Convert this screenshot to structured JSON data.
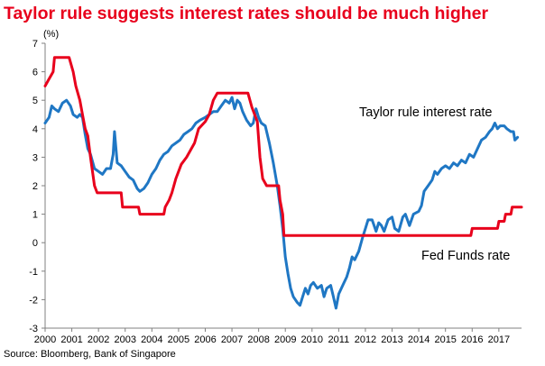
{
  "title": "Taylor rule suggests interest rates should be much higher",
  "source": "Source: Bloomberg, Bank of Singapore",
  "colors": {
    "title": "#e8001c",
    "taylor_line": "#1f77c4",
    "fed_line": "#e8001c",
    "axis": "#808080"
  },
  "chart_data": {
    "type": "line",
    "title": "Taylor rule suggests interest rates should be much higher",
    "ylabel": "(%)",
    "xlabel": "",
    "ylim": [
      -3,
      7
    ],
    "xlim": [
      2000,
      2017.85
    ],
    "yticks": [
      "-3",
      "-2",
      "-1",
      "0",
      "1",
      "2",
      "3",
      "4",
      "5",
      "6",
      "7"
    ],
    "xticks": [
      "2000",
      "2001",
      "2002",
      "2003",
      "2004",
      "2005",
      "2006",
      "2007",
      "2008",
      "2009",
      "2010",
      "2011",
      "2012",
      "2013",
      "2014",
      "2015",
      "2016",
      "2017"
    ],
    "grid": false,
    "legend": "inline labels",
    "series": [
      {
        "name": "Taylor rule interest rate",
        "color": "#1f77c4",
        "points": [
          [
            2000.0,
            4.2
          ],
          [
            2000.15,
            4.4
          ],
          [
            2000.25,
            4.8
          ],
          [
            2000.35,
            4.7
          ],
          [
            2000.5,
            4.6
          ],
          [
            2000.65,
            4.9
          ],
          [
            2000.8,
            5.0
          ],
          [
            2000.95,
            4.8
          ],
          [
            2001.05,
            4.5
          ],
          [
            2001.2,
            4.4
          ],
          [
            2001.3,
            4.5
          ],
          [
            2001.4,
            4.4
          ],
          [
            2001.5,
            3.8
          ],
          [
            2001.6,
            3.3
          ],
          [
            2001.7,
            3.1
          ],
          [
            2001.85,
            2.6
          ],
          [
            2002.0,
            2.5
          ],
          [
            2002.15,
            2.4
          ],
          [
            2002.3,
            2.6
          ],
          [
            2002.45,
            2.6
          ],
          [
            2002.55,
            3.1
          ],
          [
            2002.6,
            3.9
          ],
          [
            2002.7,
            2.8
          ],
          [
            2002.85,
            2.7
          ],
          [
            2003.0,
            2.5
          ],
          [
            2003.15,
            2.3
          ],
          [
            2003.3,
            2.2
          ],
          [
            2003.45,
            1.9
          ],
          [
            2003.55,
            1.8
          ],
          [
            2003.7,
            1.9
          ],
          [
            2003.85,
            2.1
          ],
          [
            2004.0,
            2.4
          ],
          [
            2004.15,
            2.6
          ],
          [
            2004.3,
            2.9
          ],
          [
            2004.45,
            3.1
          ],
          [
            2004.6,
            3.2
          ],
          [
            2004.75,
            3.4
          ],
          [
            2004.9,
            3.5
          ],
          [
            2005.05,
            3.6
          ],
          [
            2005.2,
            3.8
          ],
          [
            2005.35,
            3.9
          ],
          [
            2005.5,
            4.0
          ],
          [
            2005.65,
            4.2
          ],
          [
            2005.8,
            4.3
          ],
          [
            2006.0,
            4.4
          ],
          [
            2006.15,
            4.5
          ],
          [
            2006.3,
            4.6
          ],
          [
            2006.45,
            4.6
          ],
          [
            2006.6,
            4.8
          ],
          [
            2006.75,
            5.0
          ],
          [
            2006.9,
            4.9
          ],
          [
            2007.0,
            5.1
          ],
          [
            2007.1,
            4.7
          ],
          [
            2007.2,
            5.0
          ],
          [
            2007.3,
            4.9
          ],
          [
            2007.4,
            4.6
          ],
          [
            2007.55,
            4.3
          ],
          [
            2007.7,
            4.1
          ],
          [
            2007.8,
            4.2
          ],
          [
            2007.9,
            4.7
          ],
          [
            2008.0,
            4.4
          ],
          [
            2008.1,
            4.2
          ],
          [
            2008.25,
            4.1
          ],
          [
            2008.4,
            3.5
          ],
          [
            2008.55,
            2.8
          ],
          [
            2008.7,
            2.0
          ],
          [
            2008.8,
            1.3
          ],
          [
            2008.9,
            0.5
          ],
          [
            2009.0,
            -0.5
          ],
          [
            2009.1,
            -1.1
          ],
          [
            2009.2,
            -1.6
          ],
          [
            2009.3,
            -1.9
          ],
          [
            2009.45,
            -2.1
          ],
          [
            2009.55,
            -2.2
          ],
          [
            2009.65,
            -1.9
          ],
          [
            2009.75,
            -1.6
          ],
          [
            2009.85,
            -1.8
          ],
          [
            2009.95,
            -1.5
          ],
          [
            2010.05,
            -1.4
          ],
          [
            2010.2,
            -1.6
          ],
          [
            2010.35,
            -1.5
          ],
          [
            2010.45,
            -1.9
          ],
          [
            2010.55,
            -1.6
          ],
          [
            2010.7,
            -1.5
          ],
          [
            2010.8,
            -1.9
          ],
          [
            2010.9,
            -2.3
          ],
          [
            2011.0,
            -1.8
          ],
          [
            2011.15,
            -1.5
          ],
          [
            2011.3,
            -1.2
          ],
          [
            2011.4,
            -0.9
          ],
          [
            2011.5,
            -0.5
          ],
          [
            2011.6,
            -0.6
          ],
          [
            2011.75,
            -0.3
          ],
          [
            2011.9,
            0.2
          ],
          [
            2012.0,
            0.5
          ],
          [
            2012.1,
            0.8
          ],
          [
            2012.25,
            0.8
          ],
          [
            2012.4,
            0.4
          ],
          [
            2012.5,
            0.7
          ],
          [
            2012.6,
            0.6
          ],
          [
            2012.7,
            0.4
          ],
          [
            2012.85,
            0.8
          ],
          [
            2013.0,
            0.9
          ],
          [
            2013.1,
            0.5
          ],
          [
            2013.25,
            0.4
          ],
          [
            2013.4,
            0.9
          ],
          [
            2013.5,
            1.0
          ],
          [
            2013.65,
            0.6
          ],
          [
            2013.8,
            1.0
          ],
          [
            2014.0,
            1.1
          ],
          [
            2014.1,
            1.3
          ],
          [
            2014.2,
            1.8
          ],
          [
            2014.35,
            2.0
          ],
          [
            2014.5,
            2.2
          ],
          [
            2014.6,
            2.5
          ],
          [
            2014.7,
            2.4
          ],
          [
            2014.85,
            2.6
          ],
          [
            2015.0,
            2.7
          ],
          [
            2015.15,
            2.6
          ],
          [
            2015.3,
            2.8
          ],
          [
            2015.45,
            2.7
          ],
          [
            2015.6,
            2.9
          ],
          [
            2015.75,
            2.8
          ],
          [
            2015.9,
            3.1
          ],
          [
            2016.05,
            3.0
          ],
          [
            2016.2,
            3.3
          ],
          [
            2016.35,
            3.6
          ],
          [
            2016.5,
            3.7
          ],
          [
            2016.65,
            3.9
          ],
          [
            2016.75,
            4.0
          ],
          [
            2016.85,
            4.2
          ],
          [
            2016.95,
            4.0
          ],
          [
            2017.05,
            4.1
          ],
          [
            2017.2,
            4.1
          ],
          [
            2017.3,
            4.0
          ],
          [
            2017.45,
            3.9
          ],
          [
            2017.55,
            3.9
          ],
          [
            2017.6,
            3.6
          ],
          [
            2017.7,
            3.7
          ]
        ]
      },
      {
        "name": "Fed Funds rate",
        "color": "#e8001c",
        "points": [
          [
            2000.0,
            5.5
          ],
          [
            2000.15,
            5.75
          ],
          [
            2000.3,
            6.0
          ],
          [
            2000.35,
            6.5
          ],
          [
            2000.9,
            6.5
          ],
          [
            2001.05,
            6.0
          ],
          [
            2001.15,
            5.5
          ],
          [
            2001.3,
            5.0
          ],
          [
            2001.4,
            4.5
          ],
          [
            2001.5,
            4.0
          ],
          [
            2001.6,
            3.75
          ],
          [
            2001.7,
            3.0
          ],
          [
            2001.85,
            2.0
          ],
          [
            2001.95,
            1.75
          ],
          [
            2002.85,
            1.75
          ],
          [
            2002.9,
            1.25
          ],
          [
            2003.5,
            1.25
          ],
          [
            2003.55,
            1.0
          ],
          [
            2004.45,
            1.0
          ],
          [
            2004.5,
            1.25
          ],
          [
            2004.65,
            1.5
          ],
          [
            2004.75,
            1.75
          ],
          [
            2004.9,
            2.25
          ],
          [
            2005.1,
            2.75
          ],
          [
            2005.3,
            3.0
          ],
          [
            2005.45,
            3.25
          ],
          [
            2005.6,
            3.5
          ],
          [
            2005.75,
            4.0
          ],
          [
            2006.0,
            4.25
          ],
          [
            2006.15,
            4.5
          ],
          [
            2006.3,
            5.0
          ],
          [
            2006.45,
            5.25
          ],
          [
            2007.6,
            5.25
          ],
          [
            2007.75,
            4.75
          ],
          [
            2007.85,
            4.5
          ],
          [
            2007.95,
            4.25
          ],
          [
            2008.05,
            3.0
          ],
          [
            2008.15,
            2.25
          ],
          [
            2008.3,
            2.0
          ],
          [
            2008.75,
            2.0
          ],
          [
            2008.8,
            1.5
          ],
          [
            2008.9,
            1.0
          ],
          [
            2008.95,
            0.25
          ],
          [
            2015.95,
            0.25
          ],
          [
            2016.0,
            0.5
          ],
          [
            2016.95,
            0.5
          ],
          [
            2017.0,
            0.75
          ],
          [
            2017.2,
            0.75
          ],
          [
            2017.25,
            1.0
          ],
          [
            2017.45,
            1.0
          ],
          [
            2017.5,
            1.25
          ],
          [
            2017.85,
            1.25
          ]
        ]
      }
    ]
  }
}
